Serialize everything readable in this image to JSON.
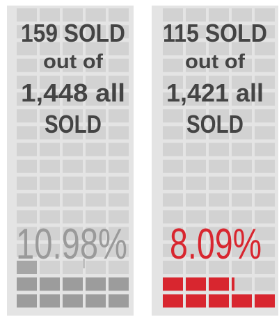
{
  "panels": [
    {
      "lines": [
        "159 SOLD",
        "out of",
        "1,448 all",
        "SOLD"
      ],
      "percent": "10.98%"
    },
    {
      "lines": [
        "115 SOLD",
        "out of",
        "1,421 all",
        "SOLD"
      ],
      "percent": "8.09%"
    }
  ]
}
